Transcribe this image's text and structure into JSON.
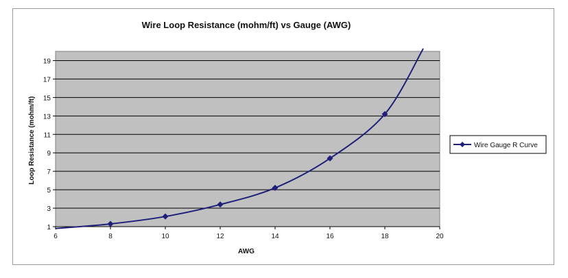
{
  "chart_data": {
    "type": "line",
    "title": "Wire Loop Resistance (mohm/ft) vs Gauge (AWG)",
    "xlabel": "AWG",
    "ylabel": "Loop Resistance (mohm/ft)",
    "xlim": [
      6,
      20
    ],
    "ylim": [
      1,
      20
    ],
    "x_ticks": [
      6,
      8,
      10,
      12,
      14,
      16,
      18,
      20
    ],
    "y_ticks": [
      1,
      3,
      5,
      7,
      9,
      11,
      13,
      15,
      17,
      19
    ],
    "grid": true,
    "legend_position": "right",
    "colors": {
      "plot_background": "#c0c0c0",
      "series": "#1f1f7a",
      "grid": "#000000"
    },
    "series": [
      {
        "name": "Wire Gauge R Curve",
        "marker": "diamond",
        "points": [
          {
            "x": 6,
            "y": 0.8
          },
          {
            "x": 8,
            "y": 1.3
          },
          {
            "x": 10,
            "y": 2.1
          },
          {
            "x": 12,
            "y": 3.4
          },
          {
            "x": 14,
            "y": 5.2
          },
          {
            "x": 16,
            "y": 8.4
          },
          {
            "x": 18,
            "y": 13.2
          },
          {
            "x": 19.4,
            "y": 20.3
          }
        ]
      }
    ]
  }
}
